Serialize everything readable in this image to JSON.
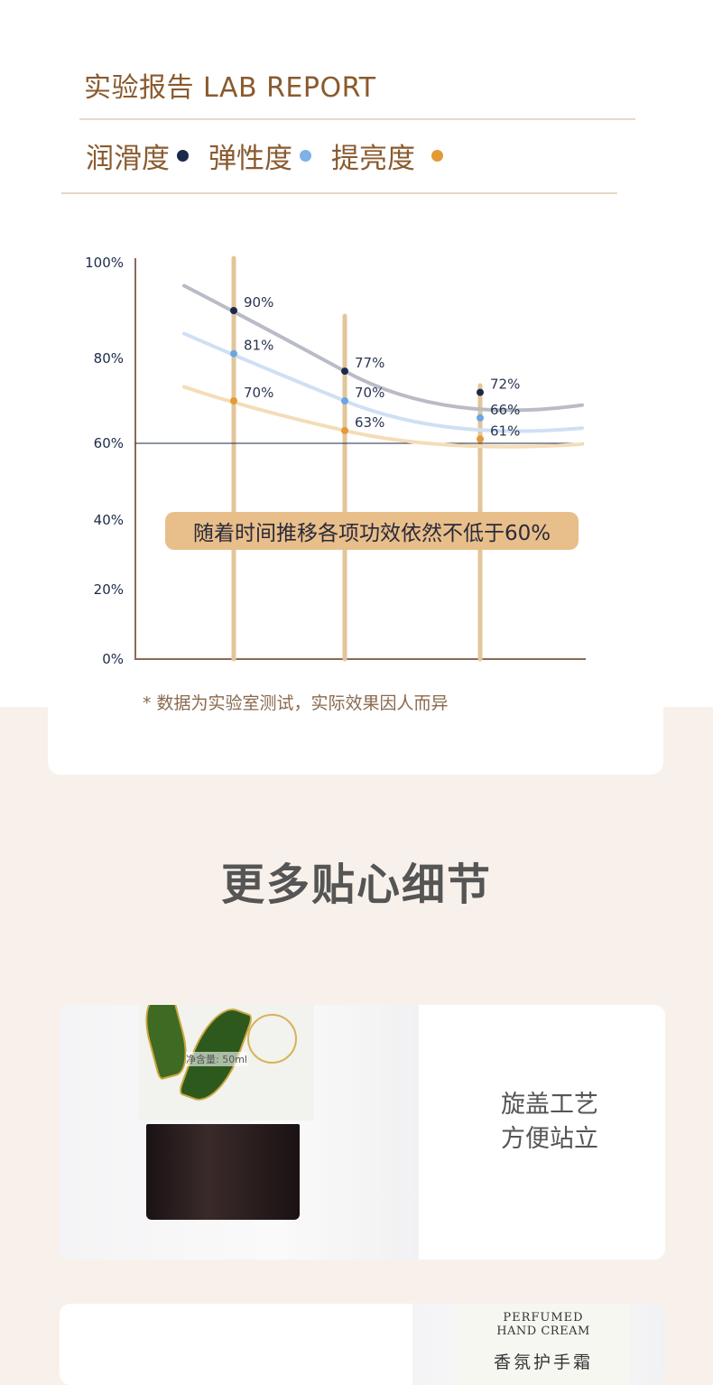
{
  "report": {
    "title": "实验报告 LAB REPORT",
    "legend": [
      {
        "label": "润滑度",
        "color": "#1c2a4a"
      },
      {
        "label": "弹性度",
        "color": "#7fb0e8"
      },
      {
        "label": "提亮度",
        "color": "#e39a35"
      }
    ],
    "banner": "随着时间推移各项功效依然不低于60%",
    "footnote": "* 数据为实验室测试，实际效果因人而异"
  },
  "chart_data": {
    "type": "line",
    "y_ticks": [
      "100%",
      "80%",
      "60%",
      "40%",
      "20%",
      "0%"
    ],
    "ylim": [
      0,
      100
    ],
    "x": [
      1,
      2,
      3
    ],
    "reference_line": 60,
    "series": [
      {
        "name": "润滑度",
        "color": "#1c2a4a",
        "line_color": "#b9bcc6",
        "values": [
          90,
          77,
          72
        ],
        "labels": [
          "90%",
          "77%",
          "72%"
        ]
      },
      {
        "name": "弹性度",
        "color": "#6aa6e6",
        "line_color": "#cfe0f4",
        "values": [
          81,
          70,
          66
        ],
        "labels": [
          "81%",
          "70%",
          "66%"
        ]
      },
      {
        "name": "提亮度",
        "color": "#e39a35",
        "line_color": "#f5dcb8",
        "values": [
          70,
          63,
          61
        ],
        "labels": [
          "70%",
          "63%",
          "61%"
        ]
      }
    ]
  },
  "details": {
    "title": "更多贴心细节",
    "cards": [
      {
        "caption_line1": "旋盖工艺",
        "caption_line2": "方便站立",
        "image_text": "净含量: 50ml"
      },
      {
        "image_text_line1": "PERFUMED",
        "image_text_line2": "HAND CREAM",
        "image_text_line3": "香氛护手霜"
      }
    ]
  }
}
